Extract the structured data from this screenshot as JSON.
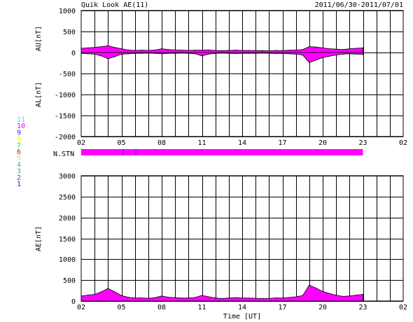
{
  "header": {
    "title": "Quik Look AE(11)",
    "date_range": "2011/06/30-2011/07/01"
  },
  "colors": {
    "fill": "#ff00ff",
    "fill_stroke": "#000000",
    "grid": "#000000",
    "station_bar_mark": "#3333cc"
  },
  "chart_data": [
    {
      "type": "area",
      "panel": "upper",
      "ylabel_top": "AU[nT]",
      "ylabel_bottom": "AL[nT]",
      "ylim": [
        -2000,
        1000
      ],
      "yticks": [
        1000,
        500,
        0,
        -500,
        -1000,
        -1500,
        -2000
      ],
      "xlim": [
        2,
        26
      ],
      "xtick_labels": [
        "02",
        "05",
        "08",
        "11",
        "14",
        "17",
        "20",
        "23",
        "02"
      ],
      "grid": true,
      "series": [
        {
          "name": "AU",
          "x": [
            2.0,
            2.5,
            3.0,
            3.5,
            4.0,
            4.5,
            5.0,
            5.5,
            6.0,
            6.5,
            7.0,
            7.5,
            8.0,
            8.5,
            9.0,
            9.5,
            10.0,
            10.5,
            11.0,
            11.5,
            12.0,
            12.5,
            13.0,
            13.5,
            14.0,
            14.5,
            15.0,
            15.5,
            16.0,
            16.5,
            17.0,
            17.5,
            18.0,
            18.5,
            19.0,
            19.5,
            20.0,
            20.5,
            21.0,
            21.5,
            22.0,
            22.5,
            23.0
          ],
          "values": [
            100,
            110,
            120,
            140,
            160,
            120,
            90,
            60,
            50,
            55,
            50,
            60,
            90,
            70,
            60,
            55,
            50,
            55,
            55,
            60,
            50,
            45,
            50,
            55,
            50,
            50,
            45,
            45,
            40,
            50,
            45,
            55,
            60,
            70,
            140,
            130,
            110,
            90,
            80,
            70,
            90,
            100,
            110
          ]
        },
        {
          "name": "AL",
          "x": [
            2.0,
            2.5,
            3.0,
            3.5,
            4.0,
            4.5,
            5.0,
            5.5,
            6.0,
            6.5,
            7.0,
            7.5,
            8.0,
            8.5,
            9.0,
            9.5,
            10.0,
            10.5,
            11.0,
            11.5,
            12.0,
            12.5,
            13.0,
            13.5,
            14.0,
            14.5,
            15.0,
            15.5,
            16.0,
            16.5,
            17.0,
            17.5,
            18.0,
            18.5,
            19.0,
            19.5,
            20.0,
            20.5,
            21.0,
            21.5,
            22.0,
            22.5,
            23.0
          ],
          "values": [
            -20,
            -30,
            -40,
            -80,
            -150,
            -100,
            -40,
            -30,
            -20,
            -20,
            -15,
            -20,
            -30,
            -20,
            -20,
            -15,
            -20,
            -30,
            -80,
            -40,
            -20,
            -15,
            -20,
            -25,
            -20,
            -20,
            -20,
            -15,
            -20,
            -25,
            -25,
            -30,
            -40,
            -60,
            -240,
            -180,
            -120,
            -90,
            -60,
            -40,
            -30,
            -40,
            -50
          ]
        }
      ]
    },
    {
      "type": "bar",
      "panel": "stations",
      "label": "N.STN",
      "legend_numbers": [
        {
          "label": "11",
          "color": "#00ffff"
        },
        {
          "label": "10",
          "color": "#ff00ff"
        },
        {
          "label": "9",
          "color": "#3333ff"
        },
        {
          "label": "8",
          "color": "#ffff00"
        },
        {
          "label": "7",
          "color": "#00ff00"
        },
        {
          "label": "6",
          "color": "#ff0000"
        },
        {
          "label": "5",
          "color": "#cccccc"
        },
        {
          "label": "4",
          "color": "#888888"
        },
        {
          "label": "3",
          "color": "#44aaaa"
        },
        {
          "label": "2",
          "color": "#aa2288"
        },
        {
          "label": "1",
          "color": "#2222aa"
        }
      ],
      "segments": [
        {
          "start": 2.0,
          "end": 23.0,
          "count": 10
        },
        {
          "start": 5.1,
          "end": 5.15,
          "count": 9
        },
        {
          "start": 6.05,
          "end": 6.1,
          "count": 9
        }
      ]
    },
    {
      "type": "area",
      "panel": "lower",
      "ylabel": "AE[nT]",
      "xlabel": "Time [UT]",
      "ylim": [
        0,
        3000
      ],
      "yticks": [
        3000,
        2500,
        2000,
        1500,
        1000,
        500,
        0
      ],
      "xlim": [
        2,
        26
      ],
      "xtick_labels": [
        "02",
        "05",
        "08",
        "11",
        "14",
        "17",
        "20",
        "23",
        "02"
      ],
      "grid": true,
      "series": [
        {
          "name": "AE",
          "x": [
            2.0,
            2.5,
            3.0,
            3.5,
            4.0,
            4.5,
            5.0,
            5.5,
            6.0,
            6.5,
            7.0,
            7.5,
            8.0,
            8.5,
            9.0,
            9.5,
            10.0,
            10.5,
            11.0,
            11.5,
            12.0,
            12.5,
            13.0,
            13.5,
            14.0,
            14.5,
            15.0,
            15.5,
            16.0,
            16.5,
            17.0,
            17.5,
            18.0,
            18.5,
            19.0,
            19.5,
            20.0,
            20.5,
            21.0,
            21.5,
            22.0,
            22.5,
            23.0
          ],
          "values": [
            120,
            140,
            160,
            220,
            300,
            220,
            130,
            90,
            70,
            75,
            65,
            80,
            120,
            90,
            80,
            70,
            70,
            85,
            135,
            100,
            70,
            60,
            70,
            80,
            70,
            70,
            65,
            60,
            60,
            75,
            70,
            85,
            100,
            130,
            380,
            310,
            230,
            180,
            140,
            110,
            120,
            140,
            160
          ]
        }
      ]
    }
  ]
}
